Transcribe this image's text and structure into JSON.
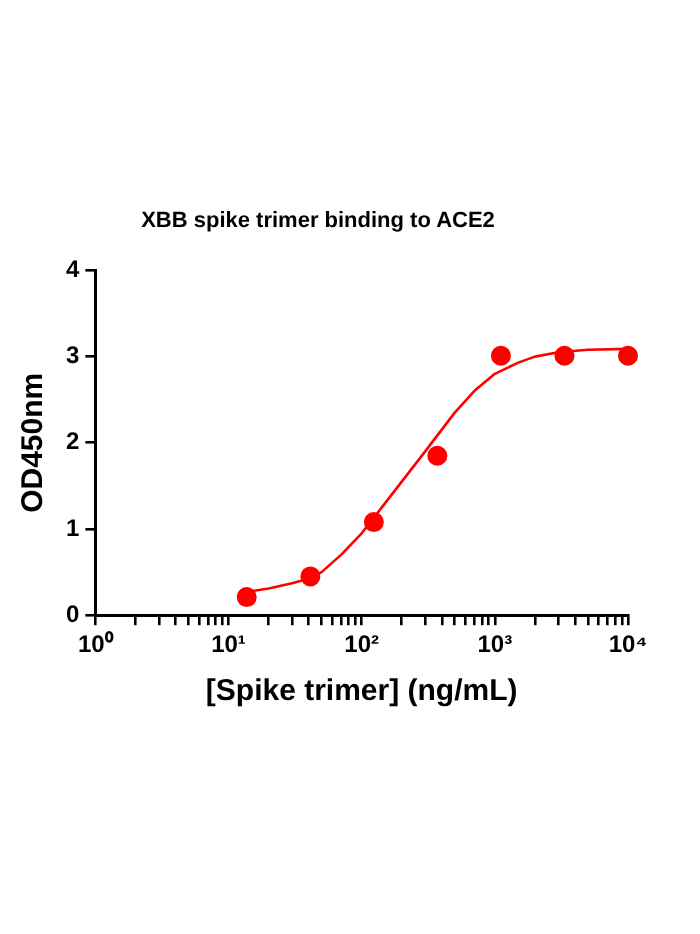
{
  "chart_data": {
    "type": "scatter",
    "title": "XBB spike trimer binding to ACE2",
    "xlabel": "[Spike trimer] (ng/mL)",
    "ylabel": "OD450nm",
    "log": "x",
    "grid": false,
    "legend": false,
    "marker": "circle",
    "xlim": [
      1,
      10000
    ],
    "xticks": [
      {
        "value": 1,
        "label": "10⁰"
      },
      {
        "value": 2,
        "label": null
      },
      {
        "value": 3,
        "label": null
      },
      {
        "value": 4,
        "label": null
      },
      {
        "value": 5,
        "label": null
      },
      {
        "value": 6,
        "label": null
      },
      {
        "value": 7,
        "label": null
      },
      {
        "value": 8,
        "label": null
      },
      {
        "value": 9,
        "label": null
      },
      {
        "value": 10,
        "label": "10¹"
      },
      {
        "value": 20,
        "label": null
      },
      {
        "value": 30,
        "label": null
      },
      {
        "value": 40,
        "label": null
      },
      {
        "value": 50,
        "label": null
      },
      {
        "value": 60,
        "label": null
      },
      {
        "value": 70,
        "label": null
      },
      {
        "value": 80,
        "label": null
      },
      {
        "value": 90,
        "label": null
      },
      {
        "value": 100,
        "label": "10²"
      },
      {
        "value": 200,
        "label": null
      },
      {
        "value": 300,
        "label": null
      },
      {
        "value": 400,
        "label": null
      },
      {
        "value": 500,
        "label": null
      },
      {
        "value": 600,
        "label": null
      },
      {
        "value": 700,
        "label": null
      },
      {
        "value": 800,
        "label": null
      },
      {
        "value": 900,
        "label": null
      },
      {
        "value": 1000,
        "label": "10³"
      },
      {
        "value": 2000,
        "label": null
      },
      {
        "value": 3000,
        "label": null
      },
      {
        "value": 4000,
        "label": null
      },
      {
        "value": 5000,
        "label": null
      },
      {
        "value": 6000,
        "label": null
      },
      {
        "value": 7000,
        "label": null
      },
      {
        "value": 8000,
        "label": null
      },
      {
        "value": 9000,
        "label": null
      },
      {
        "value": 10000,
        "label": "10⁴"
      }
    ],
    "ylim": [
      0,
      4
    ],
    "yticks": [
      0,
      1,
      2,
      3,
      4
    ],
    "series": [
      {
        "color": "#ff0000",
        "x": [
          13.7,
          41.2,
          123.5,
          370,
          1111,
          3333,
          10000
        ],
        "values": [
          0.21,
          0.45,
          1.08,
          1.85,
          3.01,
          3.01,
          3.01
        ]
      },
      {
        "type": "line",
        "color": "#ff0000",
        "marker": "none",
        "x": [
          13.7,
          20,
          30,
          41,
          50,
          70,
          100,
          150,
          200,
          300,
          500,
          700,
          1000,
          1500,
          2000,
          3000,
          5000,
          10000
        ],
        "values": [
          0.27,
          0.31,
          0.37,
          0.43,
          0.5,
          0.7,
          0.95,
          1.3,
          1.55,
          1.9,
          2.35,
          2.6,
          2.8,
          2.93,
          3.0,
          3.05,
          3.08,
          3.09
        ]
      }
    ]
  }
}
